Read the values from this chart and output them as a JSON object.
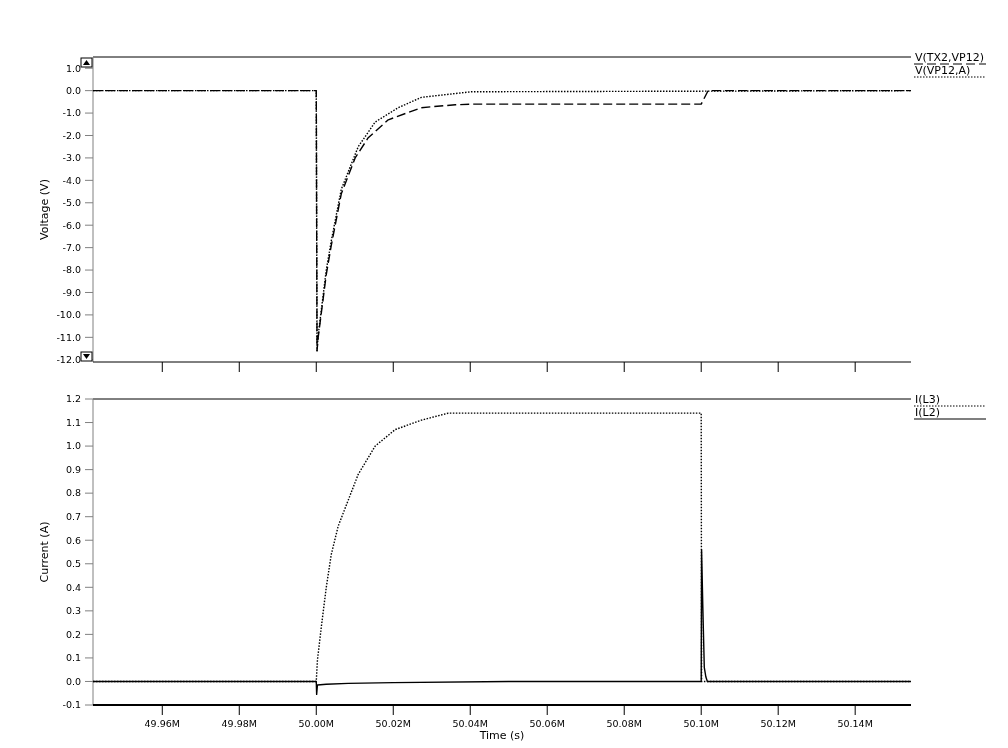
{
  "chart_data": [
    {
      "type": "line",
      "ylabel": "Voltage (V)",
      "xlim": [
        49.942,
        50.1545
      ],
      "ylim": [
        -12.1,
        1.5
      ],
      "xticks": [
        {
          "value": 49.96,
          "label": null
        },
        {
          "value": 49.98,
          "label": null
        },
        {
          "value": 50.0,
          "label": null
        },
        {
          "value": 50.02,
          "label": null
        },
        {
          "value": 50.04,
          "label": null
        },
        {
          "value": 50.06,
          "label": null
        },
        {
          "value": 50.08,
          "label": null
        },
        {
          "value": 50.1,
          "label": null
        },
        {
          "value": 50.12,
          "label": null
        },
        {
          "value": 50.14,
          "label": null
        }
      ],
      "yticks": [
        {
          "value": 1,
          "label": "1.0"
        },
        {
          "value": 0,
          "label": "0.0"
        },
        {
          "value": -1,
          "label": "-1.0"
        },
        {
          "value": -2,
          "label": "-2.0"
        },
        {
          "value": -3,
          "label": "-3.0"
        },
        {
          "value": -4,
          "label": "-4.0"
        },
        {
          "value": -5,
          "label": "-5.0"
        },
        {
          "value": -6,
          "label": "-6.0"
        },
        {
          "value": -7,
          "label": "-7.0"
        },
        {
          "value": -8,
          "label": "-8.0"
        },
        {
          "value": -9,
          "label": "-9.0"
        },
        {
          "value": -10,
          "label": "-10.0"
        },
        {
          "value": -11,
          "label": "-11.0"
        },
        {
          "value": -12,
          "label": "-12.0"
        }
      ],
      "tick_labels": "y",
      "legend": "top right",
      "marker": "none",
      "series": [
        {
          "name": "V(TX2,VP12)",
          "color": "#000000",
          "line_style": "dashed",
          "x": [
            49.942,
            50.0,
            50.0002,
            50.0005,
            50.0026,
            50.0039,
            50.0065,
            50.0101,
            50.0135,
            50.0187,
            50.0273,
            50.0361,
            50.0413,
            50.1,
            50.1018,
            50.1545
          ],
          "values": [
            0,
            0,
            -11.6,
            -11.0,
            -8.2,
            -6.9,
            -4.6,
            -3.0,
            -2.1,
            -1.3,
            -0.76,
            -0.63,
            -0.6,
            -0.6,
            0,
            0
          ]
        },
        {
          "name": "V(VP12,A)",
          "color": "#000000",
          "line_style": "dotted",
          "x": [
            49.942,
            50.0,
            50.0002,
            50.0005,
            50.0026,
            50.0039,
            50.0065,
            50.0109,
            50.0153,
            50.0213,
            50.0273,
            50.0403,
            50.1545
          ],
          "values": [
            0,
            0,
            -11.6,
            -10.9,
            -8.0,
            -6.7,
            -4.4,
            -2.5,
            -1.4,
            -0.76,
            -0.3,
            -0.05,
            0
          ]
        }
      ]
    },
    {
      "type": "line",
      "xlabel": "Time (s)",
      "ylabel": "Current (A)",
      "xlim": [
        49.942,
        50.1545
      ],
      "ylim": [
        -0.1,
        1.2
      ],
      "xticks": [
        {
          "value": 49.96,
          "label": "49.96M"
        },
        {
          "value": 49.98,
          "label": "49.98M"
        },
        {
          "value": 50.0,
          "label": "50.00M"
        },
        {
          "value": 50.02,
          "label": "50.02M"
        },
        {
          "value": 50.04,
          "label": "50.04M"
        },
        {
          "value": 50.06,
          "label": "50.06M"
        },
        {
          "value": 50.08,
          "label": "50.08M"
        },
        {
          "value": 50.1,
          "label": "50.10M"
        },
        {
          "value": 50.12,
          "label": "50.12M"
        },
        {
          "value": 50.14,
          "label": "50.14M"
        }
      ],
      "yticks": [
        {
          "value": -0.1,
          "label": "-0.1"
        },
        {
          "value": 0,
          "label": "0.0"
        },
        {
          "value": 0.1,
          "label": "0.1"
        },
        {
          "value": 0.2,
          "label": "0.2"
        },
        {
          "value": 0.3,
          "label": "0.3"
        },
        {
          "value": 0.4,
          "label": "0.4"
        },
        {
          "value": 0.5,
          "label": "0.5"
        },
        {
          "value": 0.6,
          "label": "0.6"
        },
        {
          "value": 0.7,
          "label": "0.7"
        },
        {
          "value": 0.8,
          "label": "0.8"
        },
        {
          "value": 0.9,
          "label": "0.9"
        },
        {
          "value": 1.0,
          "label": "1.0"
        },
        {
          "value": 1.1,
          "label": "1.1"
        },
        {
          "value": 1.2,
          "label": "1.2"
        }
      ],
      "legend": "top right",
      "marker": "none",
      "series": [
        {
          "name": "I(L3)",
          "color": "#000000",
          "line_style": "dotted",
          "x": [
            49.942,
            50.0,
            50.0003,
            50.0013,
            50.0026,
            50.0039,
            50.0057,
            50.0083,
            50.0109,
            50.0153,
            50.0205,
            50.0273,
            50.0343,
            50.0429,
            50.1,
            50.1001,
            50.1545
          ],
          "values": [
            0,
            0,
            0.09,
            0.23,
            0.4,
            0.54,
            0.66,
            0.77,
            0.88,
            1.0,
            1.07,
            1.11,
            1.14,
            1.14,
            1.14,
            0,
            0
          ]
        },
        {
          "name": "I(L2)",
          "color": "#000000",
          "line_style": "solid",
          "x": [
            49.942,
            50.0,
            50.0001,
            50.0003,
            50.0026,
            50.0083,
            50.02,
            50.05,
            50.1,
            50.1001,
            50.1004,
            50.1008,
            50.1012,
            50.1016,
            50.1545
          ],
          "values": [
            0,
            0,
            -0.055,
            -0.015,
            -0.012,
            -0.008,
            -0.005,
            0,
            0,
            0.56,
            0.33,
            0.06,
            0.02,
            0,
            0
          ]
        }
      ]
    }
  ]
}
